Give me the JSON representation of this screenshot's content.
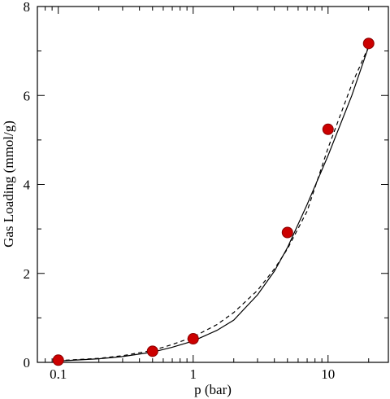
{
  "chart_data": {
    "type": "scatter",
    "title": "",
    "xlabel": "p (bar)",
    "ylabel": "Gas Loading (mmol/g)",
    "x_scale": "log",
    "xlim": [
      0.07,
      28
    ],
    "ylim": [
      0,
      8
    ],
    "x_ticks": [
      0.1,
      1,
      10
    ],
    "x_tick_labels": [
      "0.1",
      "1",
      "10"
    ],
    "y_ticks": [
      0,
      2,
      4,
      6,
      8
    ],
    "y_tick_labels": [
      "0",
      "2",
      "4",
      "6",
      "8"
    ],
    "grid": false,
    "legend": "none",
    "series": [
      {
        "style": "markers",
        "color": "#cc0000",
        "x": [
          0.1,
          0.5,
          1,
          5,
          10,
          20
        ],
        "y": [
          0.05,
          0.25,
          0.53,
          2.92,
          5.24,
          7.17
        ]
      },
      {
        "style": "dashed-line",
        "color": "#000000",
        "x": [
          0.1,
          0.2,
          0.3,
          0.5,
          0.7,
          1,
          1.5,
          2,
          3,
          4,
          5,
          7,
          10,
          15,
          20
        ],
        "y": [
          0.04,
          0.09,
          0.15,
          0.27,
          0.4,
          0.57,
          0.85,
          1.12,
          1.62,
          2.1,
          2.55,
          3.4,
          4.82,
          6.25,
          7.1
        ]
      },
      {
        "style": "solid-line",
        "color": "#000000",
        "x": [
          0.1,
          0.2,
          0.3,
          0.5,
          0.7,
          1,
          1.5,
          2,
          3,
          4,
          5,
          7,
          10,
          15,
          20
        ],
        "y": [
          0.03,
          0.08,
          0.13,
          0.23,
          0.34,
          0.48,
          0.72,
          0.95,
          1.52,
          2.05,
          2.58,
          3.55,
          4.65,
          6.0,
          7.1
        ]
      }
    ]
  }
}
